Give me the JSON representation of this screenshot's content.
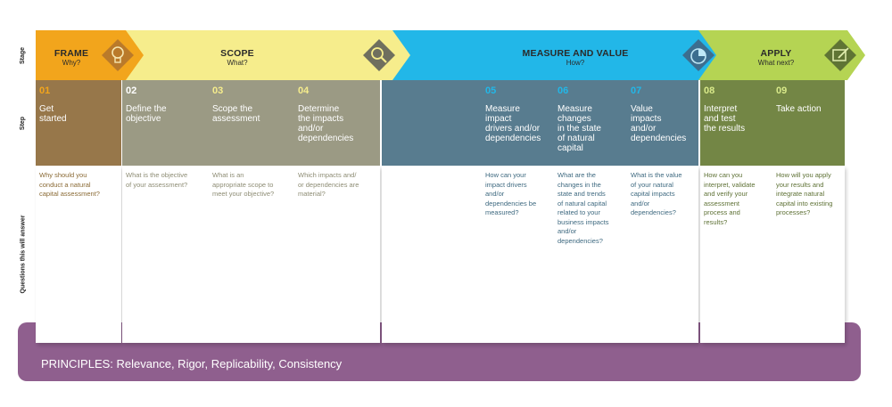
{
  "row_labels": {
    "stage": "Stage",
    "step": "Step",
    "questions": "Questions this will answer"
  },
  "stages": [
    {
      "title": "FRAME",
      "subtitle": "Why?",
      "color": "#f2a51c",
      "icon": "lightbulb-icon"
    },
    {
      "title": "SCOPE",
      "subtitle": "What?",
      "color": "#f6ed8c",
      "icon": "magnifier-icon"
    },
    {
      "title": "MEASURE AND VALUE",
      "subtitle": "How?",
      "color": "#22b7e8",
      "icon": "pie-chart-icon"
    },
    {
      "title": "APPLY",
      "subtitle": "What next?",
      "color": "#b5d453",
      "icon": "board-pen-icon"
    }
  ],
  "steps": [
    {
      "num": "01",
      "name": [
        "Get",
        "started"
      ],
      "question": [
        "Why should you",
        "conduct a natural",
        "capital assessment?"
      ]
    },
    {
      "num": "02",
      "name": [
        "Define the",
        "objective"
      ],
      "question": [
        "What is the objective",
        "of your assessment?"
      ]
    },
    {
      "num": "03",
      "name": [
        "Scope the",
        "assessment"
      ],
      "question": [
        "What is an",
        "appropriate scope to",
        "meet your objective?"
      ]
    },
    {
      "num": "04",
      "name": [
        "Determine",
        "the impacts",
        "and/or",
        "dependencies"
      ],
      "question": [
        "Which impacts and/",
        "or dependencies are",
        "material?"
      ]
    },
    {
      "num": "05",
      "name": [
        "Measure",
        "impact",
        "drivers and/or",
        "dependencies"
      ],
      "question": [
        "How can your",
        "impact drivers",
        "and/or",
        "dependencies be",
        "measured?"
      ]
    },
    {
      "num": "06",
      "name": [
        "Measure",
        "changes",
        "in the state",
        "of natural",
        "capital"
      ],
      "question": [
        "What are the",
        "changes in the",
        "state and trends",
        "of natural capital",
        "related to your",
        "business impacts",
        "and/or",
        "dependencies?"
      ]
    },
    {
      "num": "07",
      "name": [
        "Value",
        "impacts",
        "and/or",
        "dependencies"
      ],
      "question": [
        "What is the value",
        "of your natural",
        "capital impacts",
        "and/or",
        "dependencies?"
      ]
    },
    {
      "num": "08",
      "name": [
        "Interpret",
        "and test",
        "the results"
      ],
      "question": [
        "How can you",
        "interpret, validate",
        "and verify your",
        "assessment",
        "process and",
        "results?"
      ]
    },
    {
      "num": "09",
      "name": [
        "Take action"
      ],
      "question": [
        "How will you apply",
        "your results and",
        "integrate natural",
        "capital into existing",
        "processes?"
      ]
    }
  ],
  "principles": "PRINCIPLES: Relevance, Rigor, Replicability, Consistency"
}
